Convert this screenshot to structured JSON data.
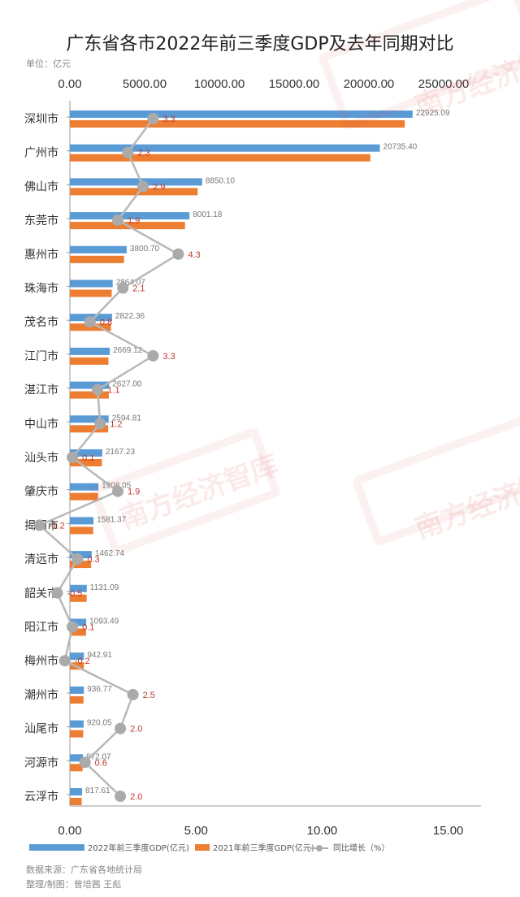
{
  "title": "广东省各市2022年前三季度GDP及去年同期对比",
  "unit_label": "单位：亿元",
  "source": "数据来源：广东省各地统计局",
  "credit": "整理/制图：曾培茜 王彪",
  "watermark": "南方经济智库",
  "chart_data": {
    "type": "bar",
    "title": "广东省各市2022年前三季度GDP及去年同期对比",
    "categories": [
      "深圳市",
      "广州市",
      "佛山市",
      "东莞市",
      "惠州市",
      "珠海市",
      "茂名市",
      "江门市",
      "湛江市",
      "中山市",
      "汕头市",
      "肇庆市",
      "揭阳市",
      "清远市",
      "韶关市",
      "阳江市",
      "梅州市",
      "潮州市",
      "汕尾市",
      "河源市",
      "云浮市"
    ],
    "top_axis": {
      "ticks": [
        "0.00",
        "5000.00",
        "10000.00",
        "15000.00",
        "20000.00",
        "25000.00"
      ],
      "min": 0,
      "max": 27500
    },
    "bottom_axis": {
      "ticks": [
        "0.00",
        "5.00",
        "10.00",
        "15.00"
      ],
      "min": 0,
      "max": 16.3
    },
    "series": [
      {
        "name": "2022年前三季度GDP(亿元)",
        "color": "#5b9bd5",
        "values": [
          22925.09,
          20735.4,
          8850.1,
          8001.18,
          3800.7,
          2864.07,
          2822.36,
          2669.12,
          2627.0,
          2594.81,
          2167.23,
          1908.05,
          1581.37,
          1462.74,
          1131.09,
          1093.49,
          942.91,
          936.77,
          920.05,
          872.07,
          817.61
        ]
      },
      {
        "name": "2021年前三季度GDP(亿元)",
        "color": "#ed7d31",
        "values": [
          22400,
          20100,
          8550,
          7700,
          3620,
          2800,
          2750,
          2580,
          2600,
          2560,
          2140,
          1880,
          1560,
          1420,
          1120,
          1080,
          930,
          910,
          890,
          850,
          790
        ]
      },
      {
        "name": "同比增长（%）",
        "color": "#aaaaaa",
        "type": "line",
        "values": [
          3.3,
          2.3,
          2.9,
          1.9,
          4.3,
          2.1,
          0.8,
          3.3,
          1.1,
          1.2,
          0.1,
          1.9,
          -1.2,
          0.3,
          -0.5,
          0.1,
          -0.2,
          2.5,
          2.0,
          0.6,
          2.0
        ]
      }
    ],
    "data_labels_bar2022": [
      "22925.09",
      "20735.40",
      "8850.10",
      "8001.18",
      "3800.70",
      "2864.07",
      "2822.36",
      "2669.12",
      "2627.00",
      "2594.81",
      "2167.23",
      "1908.05",
      "1581.37",
      "1462.74",
      "1131.09",
      "1093.49",
      "942.91",
      "936.77",
      "920.05",
      "872.07",
      "817.61"
    ],
    "data_labels_growth": [
      "3.3",
      "2.3",
      "2.9",
      "1.9",
      "4.3",
      "2.1",
      "0.8",
      "3.3",
      "1.1",
      "1.2",
      "0.1",
      "1.9",
      "-1.2",
      "0.3",
      "-0.5",
      "0.1",
      "-0.2",
      "2.5",
      "2.0",
      "0.6",
      "2.0"
    ],
    "legend": {
      "position": "bottom"
    },
    "grid": false
  }
}
